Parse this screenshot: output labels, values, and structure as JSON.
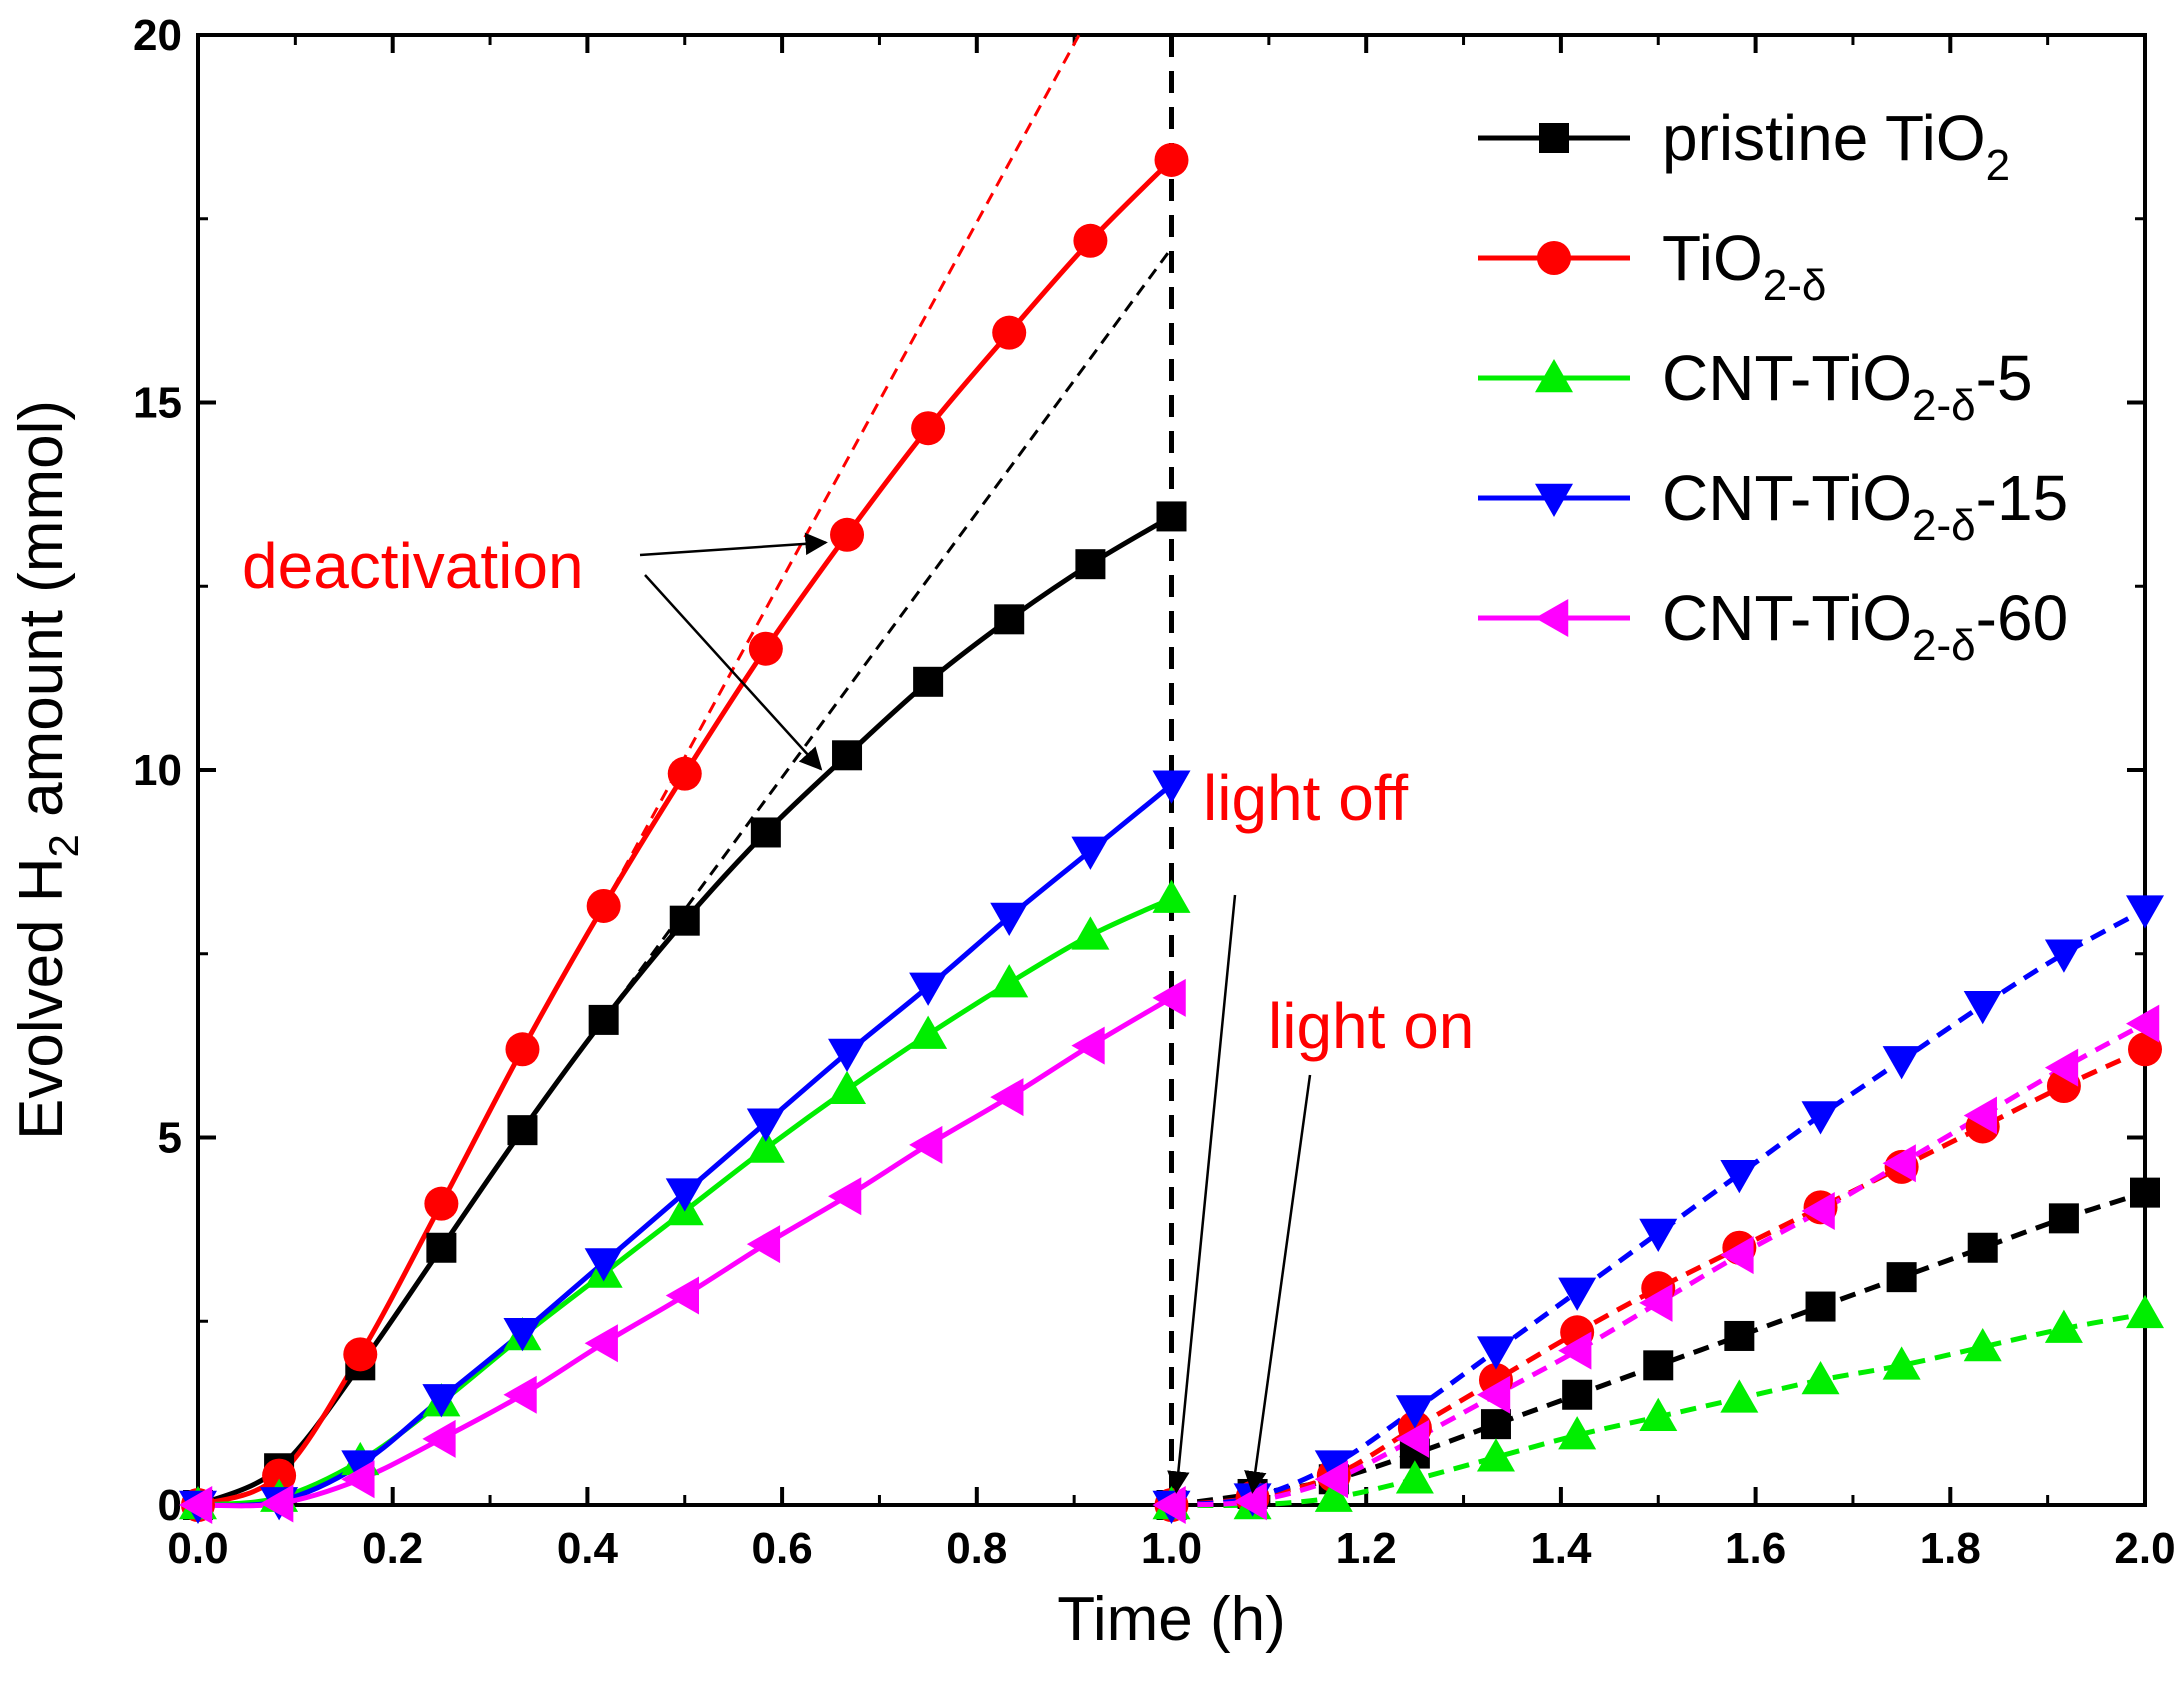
{
  "chart_data": {
    "type": "line",
    "title": "",
    "xlabel": "Time (h)",
    "ylabel_parts": [
      "Evolved H",
      "2",
      " amount (mmol)"
    ],
    "xlim": [
      0,
      2.0
    ],
    "ylim": [
      0,
      20
    ],
    "xticks": [
      0.0,
      0.2,
      0.4,
      0.6,
      0.8,
      1.0,
      1.2,
      1.4,
      1.6,
      1.8,
      2.0
    ],
    "xtick_labels": [
      "0.0",
      "0.2",
      "0.4",
      "0.6",
      "0.8",
      "1.0",
      "1.2",
      "1.4",
      "1.6",
      "1.8",
      "2.0"
    ],
    "yticks": [
      0,
      5,
      10,
      15,
      20
    ],
    "ytick_labels": [
      "0",
      "5",
      "10",
      "15",
      "20"
    ],
    "grid": false,
    "legend_position": "top-right",
    "light_off_time": 1.0,
    "series": [
      {
        "name": "pristine TiO2",
        "legend": {
          "main": "pristine TiO",
          "sub": "2",
          "tail": ""
        },
        "color": "#000000",
        "marker": "square",
        "phase1": {
          "x": [
            0,
            0.0833,
            0.1667,
            0.25,
            0.3333,
            0.4167,
            0.5,
            0.5833,
            0.6667,
            0.75,
            0.8333,
            0.9167,
            1.0
          ],
          "y": [
            0,
            0.5,
            1.9,
            3.5,
            5.1,
            6.6,
            7.95,
            9.15,
            10.2,
            11.2,
            12.05,
            12.8,
            13.45
          ]
        },
        "phase2": {
          "x": [
            1.0,
            1.0833,
            1.1667,
            1.25,
            1.3333,
            1.4167,
            1.5,
            1.5833,
            1.6667,
            1.75,
            1.8333,
            1.9167,
            2.0
          ],
          "y": [
            0,
            0.15,
            0.35,
            0.7,
            1.1,
            1.5,
            1.9,
            2.3,
            2.7,
            3.1,
            3.5,
            3.9,
            4.25
          ]
        },
        "trend": {
          "x": [
            0.4167,
            1.0
          ],
          "y": [
            6.6,
            17.1
          ]
        }
      },
      {
        "name": "TiO2-δ",
        "legend": {
          "main": "TiO",
          "sub": "2-δ",
          "tail": ""
        },
        "color": "#ff0000",
        "marker": "circle",
        "phase1": {
          "x": [
            0,
            0.0833,
            0.1667,
            0.25,
            0.3333,
            0.4167,
            0.5,
            0.5833,
            0.6667,
            0.75,
            0.8333,
            0.9167,
            1.0
          ],
          "y": [
            0,
            0.4,
            2.05,
            4.1,
            6.2,
            8.15,
            9.95,
            11.65,
            13.2,
            14.65,
            15.95,
            17.2,
            18.3
          ]
        },
        "phase2": {
          "x": [
            1.0,
            1.0833,
            1.1667,
            1.25,
            1.3333,
            1.4167,
            1.5,
            1.5833,
            1.6667,
            1.75,
            1.8333,
            1.9167,
            2.0
          ],
          "y": [
            0,
            0.1,
            0.4,
            1.05,
            1.7,
            2.35,
            2.95,
            3.5,
            4.05,
            4.6,
            5.15,
            5.7,
            6.2
          ]
        },
        "trend": {
          "x": [
            0.4167,
            0.905
          ],
          "y": [
            8.15,
            20.0
          ]
        }
      },
      {
        "name": "CNT-TiO2-δ-5",
        "legend": {
          "main": "CNT-TiO",
          "sub": "2-δ",
          "tail": "-5"
        },
        "color": "#00ee00",
        "marker": "triangle-up",
        "phase1": {
          "x": [
            0,
            0.0833,
            0.1667,
            0.25,
            0.3333,
            0.4167,
            0.5,
            0.5833,
            0.6667,
            0.75,
            0.8333,
            0.9167,
            1.0
          ],
          "y": [
            0,
            0.1,
            0.6,
            1.4,
            2.3,
            3.15,
            4.0,
            4.85,
            5.65,
            6.4,
            7.1,
            7.75,
            8.25
          ]
        },
        "phase2": {
          "x": [
            1.0,
            1.0833,
            1.1667,
            1.25,
            1.3333,
            1.4167,
            1.5,
            1.5833,
            1.6667,
            1.75,
            1.8333,
            1.9167,
            2.0
          ],
          "y": [
            0,
            0.0,
            0.1,
            0.35,
            0.65,
            0.95,
            1.2,
            1.45,
            1.7,
            1.9,
            2.15,
            2.4,
            2.6
          ]
        }
      },
      {
        "name": "CNT-TiO2-δ-15",
        "legend": {
          "main": "CNT-TiO",
          "sub": "2-δ",
          "tail": "-15"
        },
        "color": "#0000ff",
        "marker": "triangle-down",
        "phase1": {
          "x": [
            0,
            0.0833,
            0.1667,
            0.25,
            0.3333,
            0.4167,
            0.5,
            0.5833,
            0.6667,
            0.75,
            0.8333,
            0.9167,
            1.0
          ],
          "y": [
            0,
            0.05,
            0.55,
            1.45,
            2.35,
            3.3,
            4.25,
            5.2,
            6.15,
            7.05,
            8.0,
            8.9,
            9.8
          ]
        },
        "phase2": {
          "x": [
            1.0,
            1.0833,
            1.1667,
            1.25,
            1.3333,
            1.4167,
            1.5,
            1.5833,
            1.6667,
            1.75,
            1.8333,
            1.9167,
            2.0
          ],
          "y": [
            0,
            0.1,
            0.55,
            1.3,
            2.1,
            2.9,
            3.7,
            4.5,
            5.3,
            6.05,
            6.8,
            7.5,
            8.1
          ]
        }
      },
      {
        "name": "CNT-TiO2-δ-60",
        "legend": {
          "main": "CNT-TiO",
          "sub": "2-δ",
          "tail": "-60"
        },
        "color": "#ff00ff",
        "marker": "triangle-left",
        "phase1": {
          "x": [
            0,
            0.0833,
            0.1667,
            0.25,
            0.3333,
            0.4167,
            0.5,
            0.5833,
            0.6667,
            0.75,
            0.8333,
            0.9167,
            1.0
          ],
          "y": [
            0,
            0.02,
            0.35,
            0.9,
            1.5,
            2.2,
            2.85,
            3.55,
            4.2,
            4.9,
            5.55,
            6.25,
            6.9
          ]
        },
        "phase2": {
          "x": [
            1.0,
            1.0833,
            1.1667,
            1.25,
            1.3333,
            1.4167,
            1.5,
            1.5833,
            1.6667,
            1.75,
            1.8333,
            1.9167,
            2.0
          ],
          "y": [
            0,
            0.05,
            0.35,
            0.9,
            1.5,
            2.1,
            2.75,
            3.4,
            4.0,
            4.65,
            5.3,
            5.95,
            6.55
          ]
        }
      }
    ],
    "annotations": [
      {
        "text": "deactivation",
        "arrows_to": [
          {
            "x": 0.655,
            "y": 13.15
          },
          {
            "x": 0.65,
            "y": 10.15
          }
        ]
      },
      {
        "text": "light off",
        "arrow_to": {
          "x": 1.005,
          "y": 0.1
        }
      },
      {
        "text": "light on",
        "arrow_to": {
          "x": 1.075,
          "y": 0.1
        }
      }
    ]
  }
}
